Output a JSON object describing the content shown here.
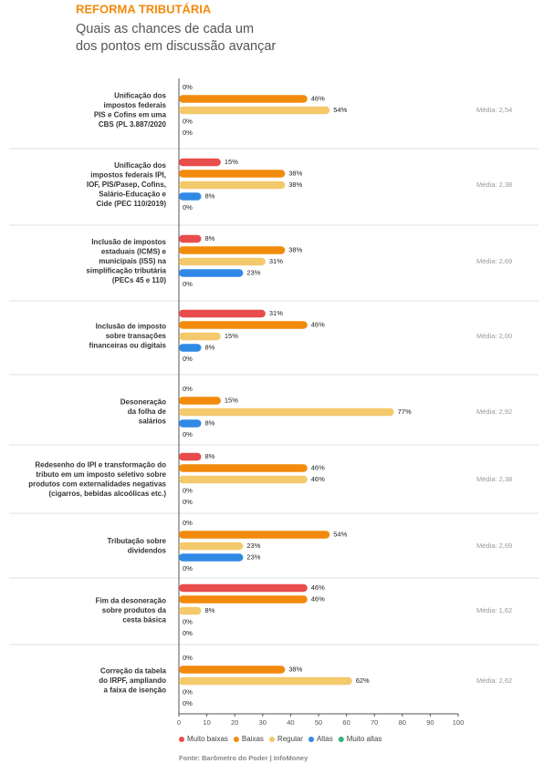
{
  "chart_data": {
    "type": "hbar-grouped",
    "kicker": "REFORMA TRIBUTÁRIA",
    "title": [
      "Quais as chances de cada um",
      "dos pontos em discussão avançar"
    ],
    "categories": [
      [
        "Unificação dos",
        "impostos federais",
        "PIS e Cofins em uma",
        "CBS (PL 3.887/2020"
      ],
      [
        "Unificação dos",
        "impostos federais IPI,",
        "IOF, PIS/Pasep, Cofins,",
        "Salário-Educação e",
        "Cide (PEC 110/2019)"
      ],
      [
        "Inclusão de impostos",
        "estaduais (ICMS) e",
        "municipais (ISS) na",
        "simplificação tributária",
        "(PECs 45 e 110)"
      ],
      [
        "Inclusão de imposto",
        "sobre transações",
        "financeiras ou digitais"
      ],
      [
        "Desoneração",
        "da folha de",
        "salários"
      ],
      [
        "Redesenho do IPI e transformação do",
        "tributo em um imposto seletivo sobre",
        "produtos com externalidades negativas",
        "(cigarros, bebidas alcoólicas etc.)"
      ],
      [
        "Tributação sobre",
        "dividendos"
      ],
      [
        "Fim da desoneração",
        "sobre produtos da",
        "cesta básica"
      ],
      [
        "Correção da tabela",
        "do IRPF, ampliando",
        "a faixa de isenção"
      ]
    ],
    "averages": [
      "Média: 2,54",
      "Média: 2,38",
      "Média: 2,69",
      "Média: 2,00",
      "Média: 2,92",
      "Média: 2,38",
      "Média: 2,69",
      "Média: 1,62",
      "Média: 2,62"
    ],
    "series": [
      {
        "name": "Muito baixas",
        "color": "#e94c4c",
        "values": [
          0,
          15,
          8,
          31,
          0,
          8,
          0,
          46,
          0
        ],
        "value_labels": [
          "0%",
          "15%",
          "8%",
          "31%",
          "0%",
          "8%",
          "0%",
          "46%",
          "0%"
        ]
      },
      {
        "name": "Baixas",
        "color": "#f28a0c",
        "values": [
          46,
          38,
          38,
          46,
          15,
          46,
          54,
          46,
          38
        ],
        "value_labels": [
          "46%",
          "38%",
          "38%",
          "46%",
          "15%",
          "46%",
          "54%",
          "46%",
          "38%"
        ]
      },
      {
        "name": "Regular",
        "color": "#f3c96c",
        "values": [
          54,
          38,
          31,
          15,
          77,
          46,
          23,
          8,
          62
        ],
        "value_labels": [
          "54%",
          "38%",
          "31%",
          "15%",
          "77%",
          "46%",
          "23%",
          "8%",
          "62%"
        ]
      },
      {
        "name": "Altas",
        "color": "#3189e6",
        "values": [
          0,
          8,
          23,
          8,
          8,
          0,
          23,
          0,
          0
        ],
        "value_labels": [
          "0%",
          "8%",
          "23%",
          "8%",
          "8%",
          "0%",
          "23%",
          "0%",
          "0%"
        ]
      },
      {
        "name": "Muito altas",
        "color": "#2fb47c",
        "values": [
          0,
          0,
          0,
          0,
          0,
          0,
          0,
          0,
          0
        ],
        "value_labels": [
          "0%",
          "0%",
          "0%",
          "0%",
          "0%",
          "0%",
          "0%",
          "0%",
          "0%"
        ]
      }
    ],
    "xlim": [
      0,
      100
    ],
    "xticks": [
      0,
      10,
      20,
      30,
      40,
      50,
      60,
      70,
      80,
      90,
      100
    ],
    "source": "Fonte: Barômetro do Poder | InfoMoney"
  }
}
